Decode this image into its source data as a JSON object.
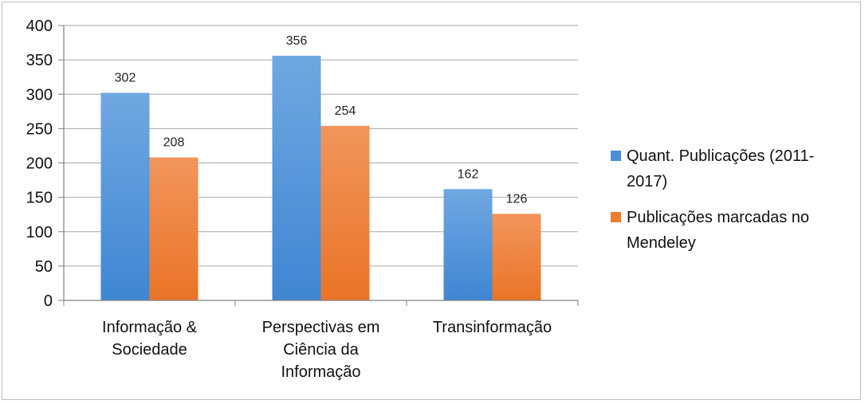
{
  "chart_data": {
    "type": "bar",
    "categories": [
      [
        "Informação &",
        "Sociedade"
      ],
      [
        "Perspectivas em",
        "Ciência da",
        "Informação"
      ],
      [
        "Transinformação"
      ]
    ],
    "series": [
      {
        "name": [
          "Quant. Publicações (2011-",
          "2017)"
        ],
        "values": [
          302,
          356,
          162
        ],
        "color": "#4a8fd6",
        "color_light": "#6aa6e0"
      },
      {
        "name": [
          "Publicações marcadas no",
          "Mendeley"
        ],
        "values": [
          208,
          254,
          126
        ],
        "color": "#ee7d31",
        "color_light": "#f29458"
      }
    ],
    "ylim": [
      0,
      400
    ],
    "yticks": [
      0,
      50,
      100,
      150,
      200,
      250,
      300,
      350,
      400
    ],
    "grid": true,
    "legend": "right",
    "data_labels": true
  }
}
